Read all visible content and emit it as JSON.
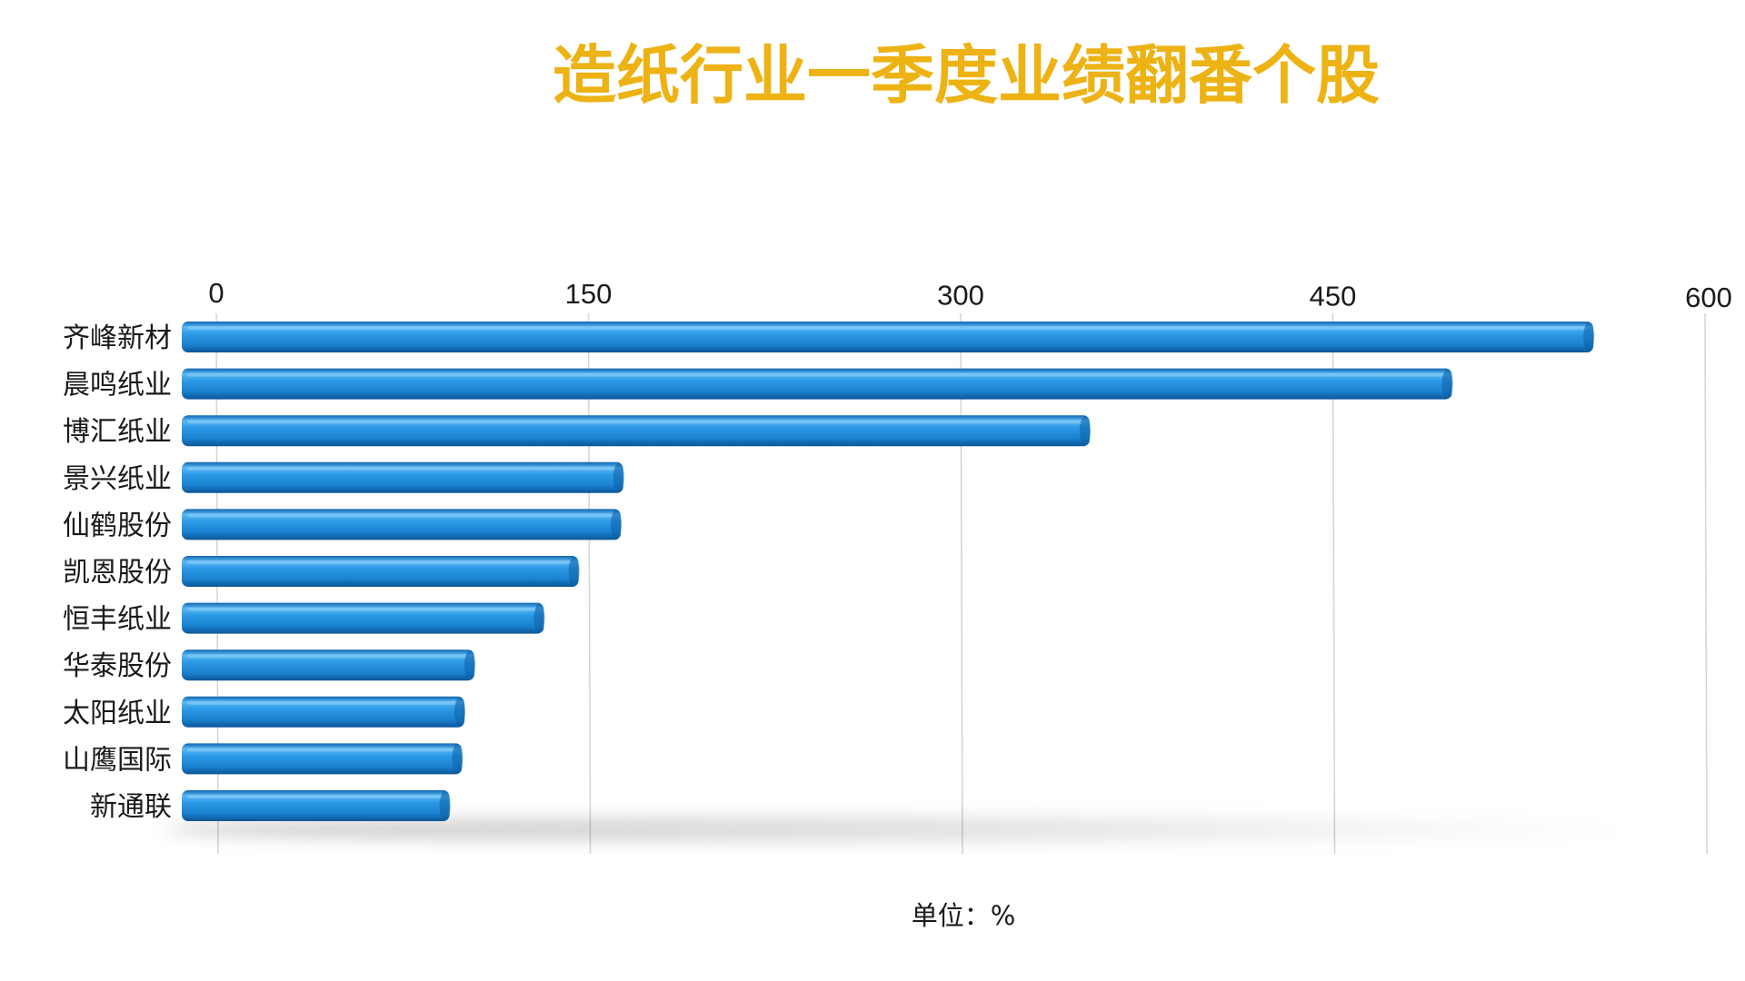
{
  "chart_data": {
    "type": "bar",
    "orientation": "horizontal",
    "title": "造纸行业一季度业绩翻番个股",
    "unit_label": "单位：%",
    "categories": [
      "齐峰新材",
      "晨鸣纸业",
      "博汇纸业",
      "景兴纸业",
      "仙鹤股份",
      "凯恩股份",
      "恒丰纸业",
      "华泰股份",
      "太阳纸业",
      "山鹰国际",
      "新通联"
    ],
    "values": [
      555,
      498,
      352,
      164,
      163,
      146,
      132,
      104,
      100,
      99,
      94
    ],
    "xlim": [
      0,
      600
    ],
    "xticks": [
      "0",
      "150",
      "300",
      "450",
      "600"
    ],
    "tick_axis_position": "top",
    "grid": true,
    "legend": "none"
  },
  "colors": {
    "title": "#EDB214",
    "bar": "#1E88D6",
    "bar_light": "#5CB8F2",
    "bar_dark": "#0E5FA6",
    "gridline": "#D4D4D4",
    "text": "#1a1a1a"
  }
}
